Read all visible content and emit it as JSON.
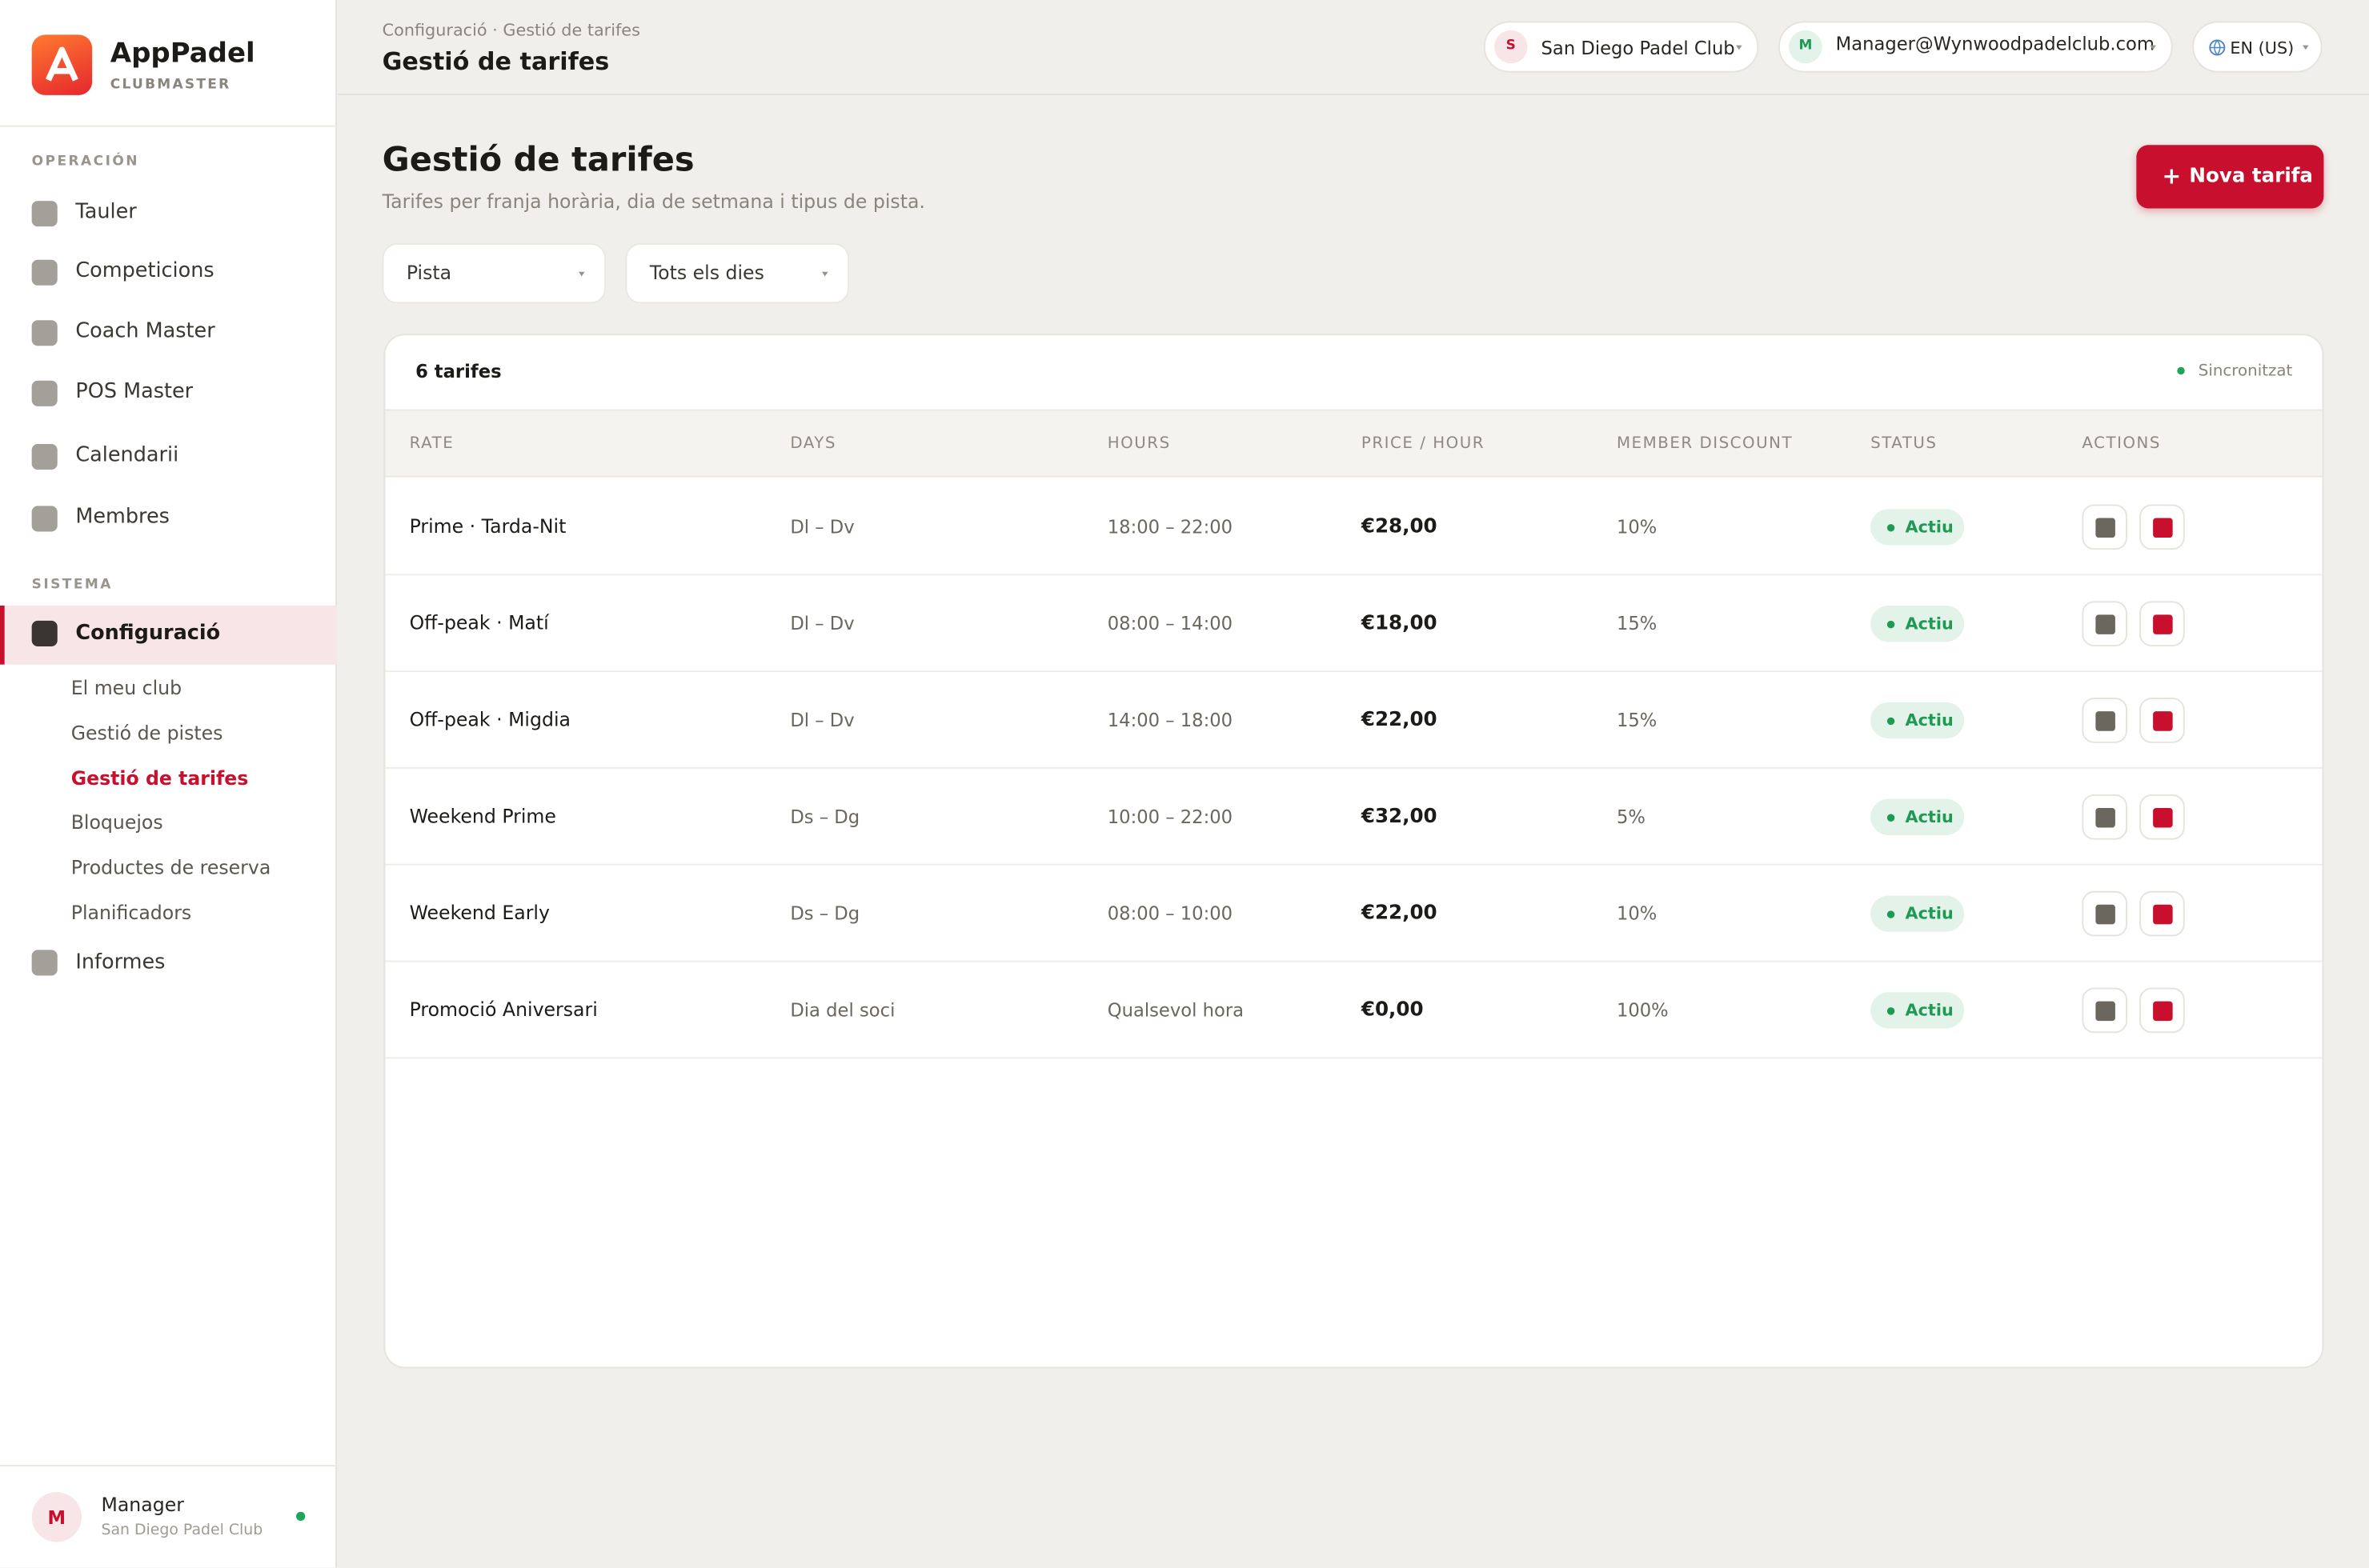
{
  "brand": {
    "name": "AppPadel",
    "sub": "CLUBMASTER"
  },
  "nav": {
    "sections": [
      {
        "title": "OPERACIÓN",
        "items": [
          "Tauler",
          "Competicions",
          "Coach Master",
          "POS Master",
          "Calendarii",
          "Membres"
        ]
      },
      {
        "title": "SISTEMA",
        "items": [
          "Configuració",
          "Informes"
        ]
      }
    ],
    "config_subitems": [
      "El meu club",
      "Gestió de pistes",
      "Gestió de tarifes",
      "Bloquejos",
      "Productes de reserva",
      "Planificadors"
    ]
  },
  "user": {
    "avatar": "M",
    "name": "Manager",
    "club": "San Diego Padel Club"
  },
  "topbar": {
    "breadcrumb": "Configuració · Gestió de tarifes",
    "title": "Gestió de tarifes",
    "club_avatar": "S",
    "club": "San Diego Padel Club",
    "user_avatar": "M",
    "user_email": "Manager@Wynwoodpadelclub.com",
    "language": "EN (US)"
  },
  "page": {
    "title": "Gestió de tarifes",
    "subtitle": "Tarifes per franja horària, dia de setmana i tipus de pista.",
    "button_icon": "+",
    "button": "Nova tarifa"
  },
  "filters": [
    "Pista",
    "Tots els dies"
  ],
  "table": {
    "count": "6 tarifes",
    "sync": "Sincronitzat",
    "columns": [
      "RATE",
      "DAYS",
      "HOURS",
      "PRICE / HOUR",
      "MEMBER DISCOUNT",
      "STATUS",
      "ACTIONS"
    ],
    "rows": [
      [
        "Prime · Tarda-Nit",
        "Dl – Dv",
        "18:00 – 22:00",
        "€28,00",
        "10%",
        "Actiu"
      ],
      [
        "Off-peak · Matí",
        "Dl – Dv",
        "08:00 – 14:00",
        "€18,00",
        "15%",
        "Actiu"
      ],
      [
        "Off-peak · Migdia",
        "Dl – Dv",
        "14:00 – 18:00",
        "€22,00",
        "15%",
        "Actiu"
      ],
      [
        "Weekend Prime",
        "Ds – Dg",
        "10:00 – 22:00",
        "€32,00",
        "5%",
        "Actiu"
      ],
      [
        "Weekend Early",
        "Ds – Dg",
        "08:00 – 10:00",
        "€22,00",
        "10%",
        "Actiu"
      ],
      [
        "Promoció Aniversari",
        "Dia del soci",
        "Qualsevol hora",
        "€0,00",
        "100%",
        "Actiu"
      ]
    ]
  }
}
